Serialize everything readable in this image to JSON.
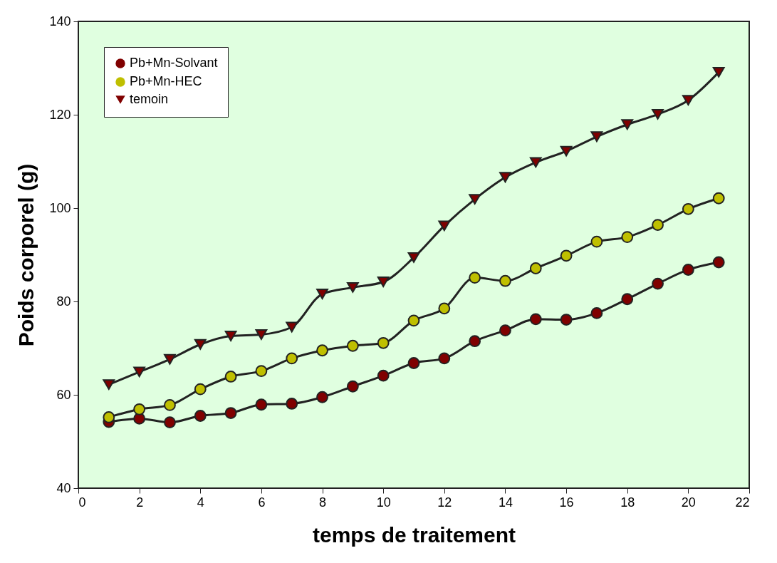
{
  "chart_data": {
    "type": "line",
    "xlabel": "temps de traitement",
    "ylabel": "Poids corporel (g)",
    "x": [
      1,
      2,
      3,
      4,
      5,
      6,
      7,
      8,
      9,
      10,
      11,
      12,
      13,
      14,
      15,
      16,
      17,
      18,
      19,
      20,
      21
    ],
    "series": [
      {
        "name": "Pb+Mn-Solvant",
        "color": "#800000",
        "marker": "circle",
        "values": [
          54.2,
          54.9,
          54.1,
          55.5,
          56.1,
          57.9,
          58.1,
          59.5,
          61.8,
          64.1,
          66.8,
          67.8,
          71.5,
          73.8,
          76.2,
          76.1,
          77.5,
          80.5,
          83.8,
          86.8,
          88.4
        ]
      },
      {
        "name": "Pb+Mn-HEC",
        "color": "#bfbf00",
        "marker": "circle",
        "values": [
          55.2,
          56.9,
          57.8,
          61.2,
          63.9,
          65.1,
          67.8,
          69.5,
          70.5,
          71.1,
          75.9,
          78.5,
          85.1,
          84.4,
          87.1,
          89.8,
          92.8,
          93.8,
          96.4,
          99.8,
          102.1
        ]
      },
      {
        "name": "temoin",
        "color": "#800000",
        "marker": "triangle",
        "values": [
          62.2,
          64.9,
          67.6,
          70.8,
          72.6,
          72.9,
          74.5,
          81.6,
          83.0,
          84.2,
          89.4,
          96.2,
          101.9,
          106.6,
          109.8,
          112.2,
          115.3,
          117.9,
          120.1,
          123.1,
          129.1
        ]
      }
    ],
    "xlim": [
      0,
      22
    ],
    "xticks": [
      0,
      2,
      4,
      6,
      8,
      10,
      12,
      14,
      16,
      18,
      20,
      22
    ],
    "ylim": [
      40,
      140
    ],
    "yticks": [
      40,
      60,
      80,
      100,
      120,
      140
    ],
    "grid": false,
    "legend": "top left",
    "line_style": "solid"
  }
}
